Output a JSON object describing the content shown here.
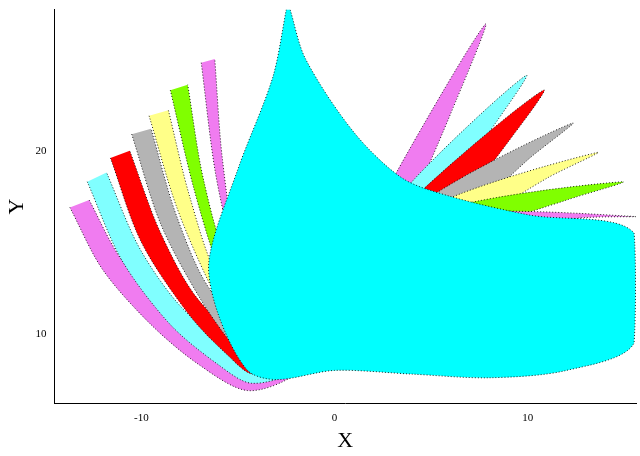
{
  "chart_data": {
    "type": "area",
    "x_label": "X",
    "y_label": "Y",
    "xlim": [
      -14.5,
      15.6
    ],
    "xticks": [
      -10,
      0,
      10
    ],
    "ylim": [
      6.2,
      27.7
    ],
    "yticks": [
      10,
      20
    ],
    "grid": false,
    "series": [
      {
        "color": "#f07cf0",
        "x": [
          -13.7,
          -12,
          -9.5,
          -7,
          -4.5,
          -2,
          1,
          3.5,
          6,
          7.8,
          3.2,
          1,
          -1.5,
          -4.5,
          -8,
          -11,
          -12.7
        ],
        "values": [
          16.9,
          13.5,
          10.5,
          8.3,
          6.9,
          7.8,
          11,
          16,
          22,
          26.9,
          18.8,
          14,
          10.5,
          8.5,
          10.5,
          14,
          17.3
        ]
      },
      {
        "color": "#80ffff",
        "x": [
          -12.8,
          -11,
          -8.5,
          -6,
          -4.3,
          -2,
          1.5,
          5,
          8,
          9.9,
          4,
          1.5,
          -1.5,
          -4.3,
          -7.5,
          -10,
          -11.8
        ],
        "values": [
          18.3,
          14,
          10.5,
          8.3,
          7.3,
          8,
          11.5,
          16.5,
          21,
          24.1,
          18.3,
          14.5,
          11,
          9,
          11,
          14.5,
          18.8
        ]
      },
      {
        "color": "#ff0000",
        "x": [
          -11.6,
          -10,
          -7.5,
          -5.5,
          -4.2,
          -1.5,
          2,
          6,
          9,
          10.8,
          4.5,
          2,
          -1,
          -4.2,
          -7,
          -9,
          -10.6
        ],
        "values": [
          19.6,
          15,
          11,
          8.8,
          7.8,
          8.6,
          12,
          16.5,
          20.5,
          23.3,
          17.8,
          14.5,
          11.5,
          9.5,
          11.8,
          15.5,
          20
        ]
      },
      {
        "color": "#b4b4b4",
        "x": [
          -10.5,
          -9,
          -7,
          -5.2,
          -4.1,
          -1,
          3,
          7,
          10,
          12.3,
          5,
          2.5,
          -0.5,
          -4,
          -6.5,
          -8.2,
          -9.5
        ],
        "values": [
          20.9,
          16,
          12,
          9.3,
          8.3,
          9.2,
          12.5,
          16.5,
          19.5,
          21.5,
          17.5,
          14.5,
          12,
          10,
          12.5,
          16.5,
          21.2
        ]
      },
      {
        "color": "#ffff88",
        "x": [
          -9.6,
          -8.2,
          -6.5,
          -5,
          -4,
          -0.5,
          3.5,
          8,
          11,
          13.6,
          5.5,
          3,
          0,
          -3.8,
          -6,
          -7.5,
          -8.6
        ],
        "values": [
          21.9,
          17,
          12.8,
          10,
          8.8,
          9.8,
          13,
          16.5,
          18.5,
          19.9,
          17.2,
          14.8,
          12.5,
          10.5,
          13,
          17.5,
          22.2
        ]
      },
      {
        "color": "#80ff00",
        "x": [
          -8.5,
          -7.3,
          -6,
          -4.8,
          -3.9,
          0,
          4,
          8.5,
          12,
          14.9,
          6,
          3.5,
          0.5,
          -3.6,
          -5.5,
          -6.8,
          -7.6
        ],
        "values": [
          23.3,
          18,
          13.5,
          10.6,
          9.3,
          10.3,
          13.3,
          16,
          17.3,
          18.3,
          16.9,
          15,
          13,
          11,
          13.8,
          18.5,
          23.6
        ]
      },
      {
        "color": "#f07cf0",
        "x": [
          -6.9,
          -6.2,
          -5.3,
          -4.5,
          -3.8,
          0.5,
          4.5,
          9,
          12.5,
          15.6,
          6.5,
          4,
          1,
          -3.4,
          -5,
          -5.8,
          -6.2
        ],
        "values": [
          24.8,
          19,
          14.5,
          11.2,
          9.8,
          10.8,
          13.5,
          15.5,
          16.3,
          16.4,
          16.6,
          15.2,
          13.5,
          11.5,
          14.5,
          19.5,
          25
        ]
      },
      {
        "color": "#00ffff",
        "x": [
          -2.5,
          -3.2,
          -5,
          -6.5,
          -6,
          -4.5,
          -3,
          0,
          4,
          8,
          12,
          15.5,
          15.5,
          10,
          6,
          3.5,
          1,
          -1.5,
          -2.3
        ],
        "values": [
          27.7,
          24,
          19,
          14,
          11,
          8,
          7.5,
          8,
          7.8,
          7.6,
          8,
          9.5,
          15.5,
          16.5,
          17.5,
          18.5,
          21,
          25,
          27.7
        ]
      }
    ]
  }
}
